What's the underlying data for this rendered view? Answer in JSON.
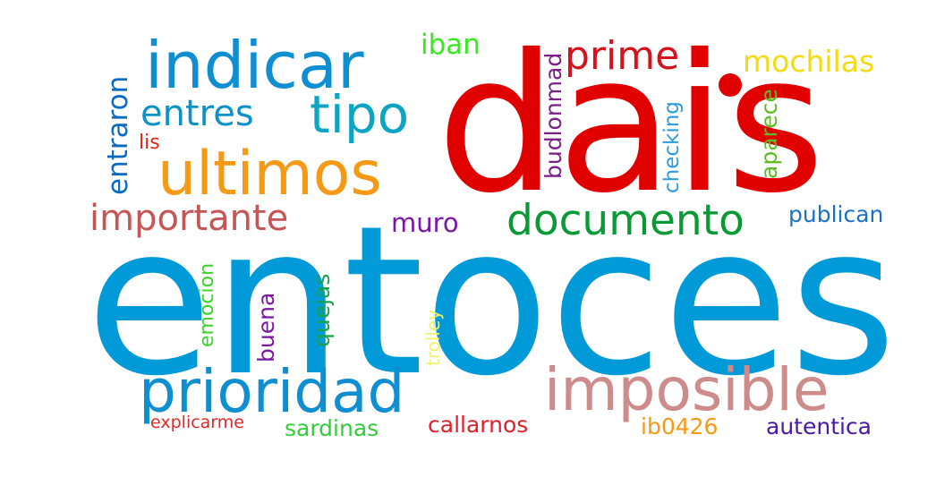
{
  "words": {
    "entoces": {
      "text": "entoces",
      "color": "#009ad8"
    },
    "dais": {
      "text": "dais",
      "color": "#e00000"
    },
    "indicar": {
      "text": "indicar",
      "color": "#0f8ed1"
    },
    "prioridad": {
      "text": "prioridad",
      "color": "#0f8ed1"
    },
    "imposible": {
      "text": "imposible",
      "color": "#cd8b8b"
    },
    "ultimos": {
      "text": "ultimos",
      "color": "#f59a16"
    },
    "documento": {
      "text": "documento",
      "color": "#0a9a35"
    },
    "tipo": {
      "text": "tipo",
      "color": "#0da5c2"
    },
    "importante": {
      "text": "importante",
      "color": "#c55656"
    },
    "entres": {
      "text": "entres",
      "color": "#0b93c8"
    },
    "prime": {
      "text": "prime",
      "color": "#d4131d"
    },
    "mochilas": {
      "text": "mochilas",
      "color": "#f2dc10"
    },
    "iban": {
      "text": "iban",
      "color": "#36ea1d"
    },
    "entraron": {
      "text": "entraron",
      "color": "#0a6bc4"
    },
    "lis": {
      "text": "lis",
      "color": "#e4241e"
    },
    "muro": {
      "text": "muro",
      "color": "#7a16a8"
    },
    "publican": {
      "text": "publican",
      "color": "#1a72c8"
    },
    "budlonmad": {
      "text": "budlonmad",
      "color": "#7a1f86"
    },
    "checking": {
      "text": "checking",
      "color": "#2e9be0"
    },
    "aparece": {
      "text": "aparece",
      "color": "#5ebc23"
    },
    "emocion": {
      "text": "emocion",
      "color": "#3bd22a"
    },
    "buena": {
      "text": "buena",
      "color": "#7a18a2"
    },
    "quejas": {
      "text": "quejas",
      "color": "#16a34a"
    },
    "trolley": {
      "text": "trolley",
      "color": "#eef26a"
    },
    "explicarme": {
      "text": "explicarme",
      "color": "#e02a2a"
    },
    "sardinas": {
      "text": "sardinas",
      "color": "#32ce38"
    },
    "callarnos": {
      "text": "callarnos",
      "color": "#e0202a"
    },
    "ib0426": {
      "text": "ib0426",
      "color": "#f59a16"
    },
    "autentica": {
      "text": "autentica",
      "color": "#4a18a8"
    }
  },
  "dot_color": "#e00000"
}
